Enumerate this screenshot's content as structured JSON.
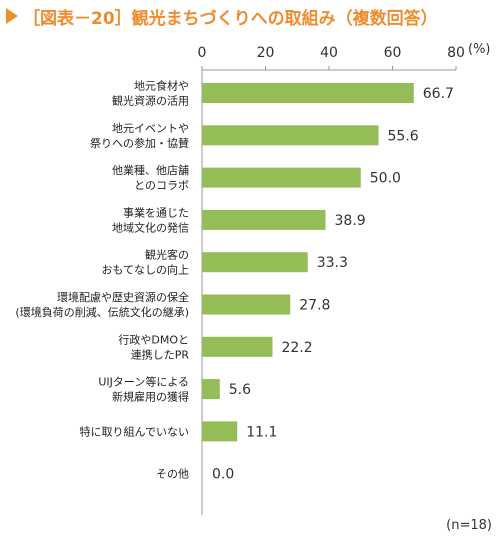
{
  "title": "［図表－20］観光まちづくりへの取組み（複数回答）",
  "unit_label": "(%)",
  "footnote": "(n=18)",
  "colors": {
    "bar": "#94bc57",
    "title": "#f08c2e",
    "axis": "#999999"
  },
  "chart_data": {
    "type": "bar",
    "orientation": "horizontal",
    "xlim": [
      0,
      80
    ],
    "ticks": [
      "0",
      "20",
      "40",
      "60",
      "80"
    ],
    "categories": [
      [
        "地元食材や",
        "観光資源の活用"
      ],
      [
        "地元イベントや",
        "祭りへの参加・協賛"
      ],
      [
        "他業種、他店舗",
        "とのコラボ"
      ],
      [
        "事業を通じた",
        "地域文化の発信"
      ],
      [
        "観光客の",
        "おもてなしの向上"
      ],
      [
        "環境配慮や歴史資源の保全",
        "(環境負荷の削減、伝統文化の継承)"
      ],
      [
        "行政やDMOと",
        "連携したPR"
      ],
      [
        "UIJターン等による",
        "新規雇用の獲得"
      ],
      [
        "特に取り組んでいない"
      ],
      [
        "その他"
      ]
    ],
    "values": [
      66.7,
      55.6,
      50.0,
      38.9,
      33.3,
      27.8,
      22.2,
      5.6,
      11.1,
      0.0
    ],
    "value_labels": [
      "66.7",
      "55.6",
      "50.0",
      "38.9",
      "33.3",
      "27.8",
      "22.2",
      "5.6",
      "11.1",
      "0.0"
    ],
    "grid": false
  }
}
